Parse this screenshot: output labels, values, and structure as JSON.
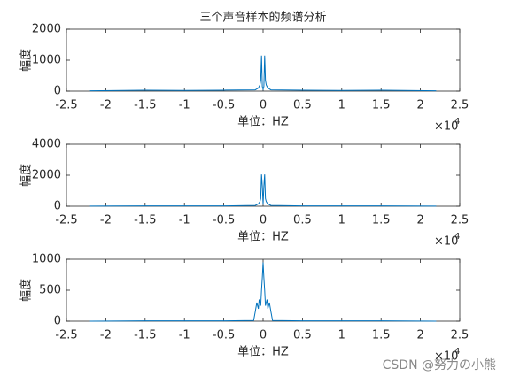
{
  "chart_data": [
    {
      "type": "line",
      "title": "三个声音样本的频谱分析",
      "xlabel": "单位：HZ",
      "ylabel": "幅度",
      "x_multiplier": "×10",
      "x_multiplier_power": "4",
      "x": [
        -2.2,
        -1.5,
        -1,
        -0.5,
        -0.1,
        -0.06,
        -0.04,
        -0.03,
        -0.02,
        -0.01,
        0,
        0.01,
        0.02,
        0.03,
        0.04,
        0.06,
        0.1,
        0.5,
        1,
        1.5,
        2.2
      ],
      "series": [
        {
          "color": "#0072bd",
          "values": [
            10,
            30,
            20,
            30,
            40,
            100,
            200,
            350,
            1150,
            150,
            60,
            150,
            1150,
            350,
            200,
            100,
            40,
            30,
            20,
            30,
            10
          ]
        }
      ],
      "xlim": [
        -2.5,
        2.5
      ],
      "xticks": [
        -2.5,
        -2,
        -1.5,
        -1,
        -0.5,
        0,
        0.5,
        1,
        1.5,
        2,
        2.5
      ],
      "ylim": [
        0,
        2000
      ],
      "yticks": [
        0,
        1000,
        2000
      ]
    },
    {
      "type": "line",
      "xlabel": "单位：HZ",
      "ylabel": "幅度",
      "x_multiplier": "×10",
      "x_multiplier_power": "4",
      "x": [
        -2.2,
        -1.5,
        -1,
        -0.5,
        -0.1,
        -0.06,
        -0.04,
        -0.03,
        -0.02,
        -0.01,
        0,
        0.01,
        0.02,
        0.03,
        0.04,
        0.06,
        0.1,
        0.5,
        1,
        1.5,
        2.2
      ],
      "series": [
        {
          "color": "#0072bd",
          "values": [
            10,
            20,
            20,
            20,
            50,
            150,
            300,
            500,
            2050,
            1300,
            100,
            1300,
            2050,
            500,
            300,
            150,
            50,
            20,
            20,
            20,
            10
          ]
        }
      ],
      "xlim": [
        -2.5,
        2.5
      ],
      "xticks": [
        -2.5,
        -2,
        -1.5,
        -1,
        -0.5,
        0,
        0.5,
        1,
        1.5,
        2,
        2.5
      ],
      "ylim": [
        0,
        4000
      ],
      "yticks": [
        0,
        2000,
        4000
      ]
    },
    {
      "type": "line",
      "xlabel": "单位：HZ",
      "ylabel": "幅度",
      "x_multiplier": "×10",
      "x_multiplier_power": "4",
      "x": [
        -2.2,
        -1.5,
        -1,
        -0.5,
        -0.12,
        -0.1,
        -0.08,
        -0.06,
        -0.05,
        -0.03,
        -0.02,
        -0.01,
        0,
        0.01,
        0.02,
        0.03,
        0.05,
        0.06,
        0.08,
        0.1,
        0.12,
        0.5,
        1,
        1.5,
        2.2
      ],
      "series": [
        {
          "color": "#0072bd",
          "values": [
            0,
            5,
            5,
            5,
            10,
            150,
            300,
            200,
            350,
            250,
            500,
            700,
            950,
            700,
            500,
            250,
            350,
            200,
            300,
            150,
            10,
            5,
            5,
            5,
            0
          ]
        }
      ],
      "xlim": [
        -2.5,
        2.5
      ],
      "xticks": [
        -2.5,
        -2,
        -1.5,
        -1,
        -0.5,
        0,
        0.5,
        1,
        1.5,
        2,
        2.5
      ],
      "ylim": [
        0,
        1000
      ],
      "yticks": [
        0,
        500,
        1000
      ]
    }
  ],
  "watermark": "CSDN @努力の小熊"
}
